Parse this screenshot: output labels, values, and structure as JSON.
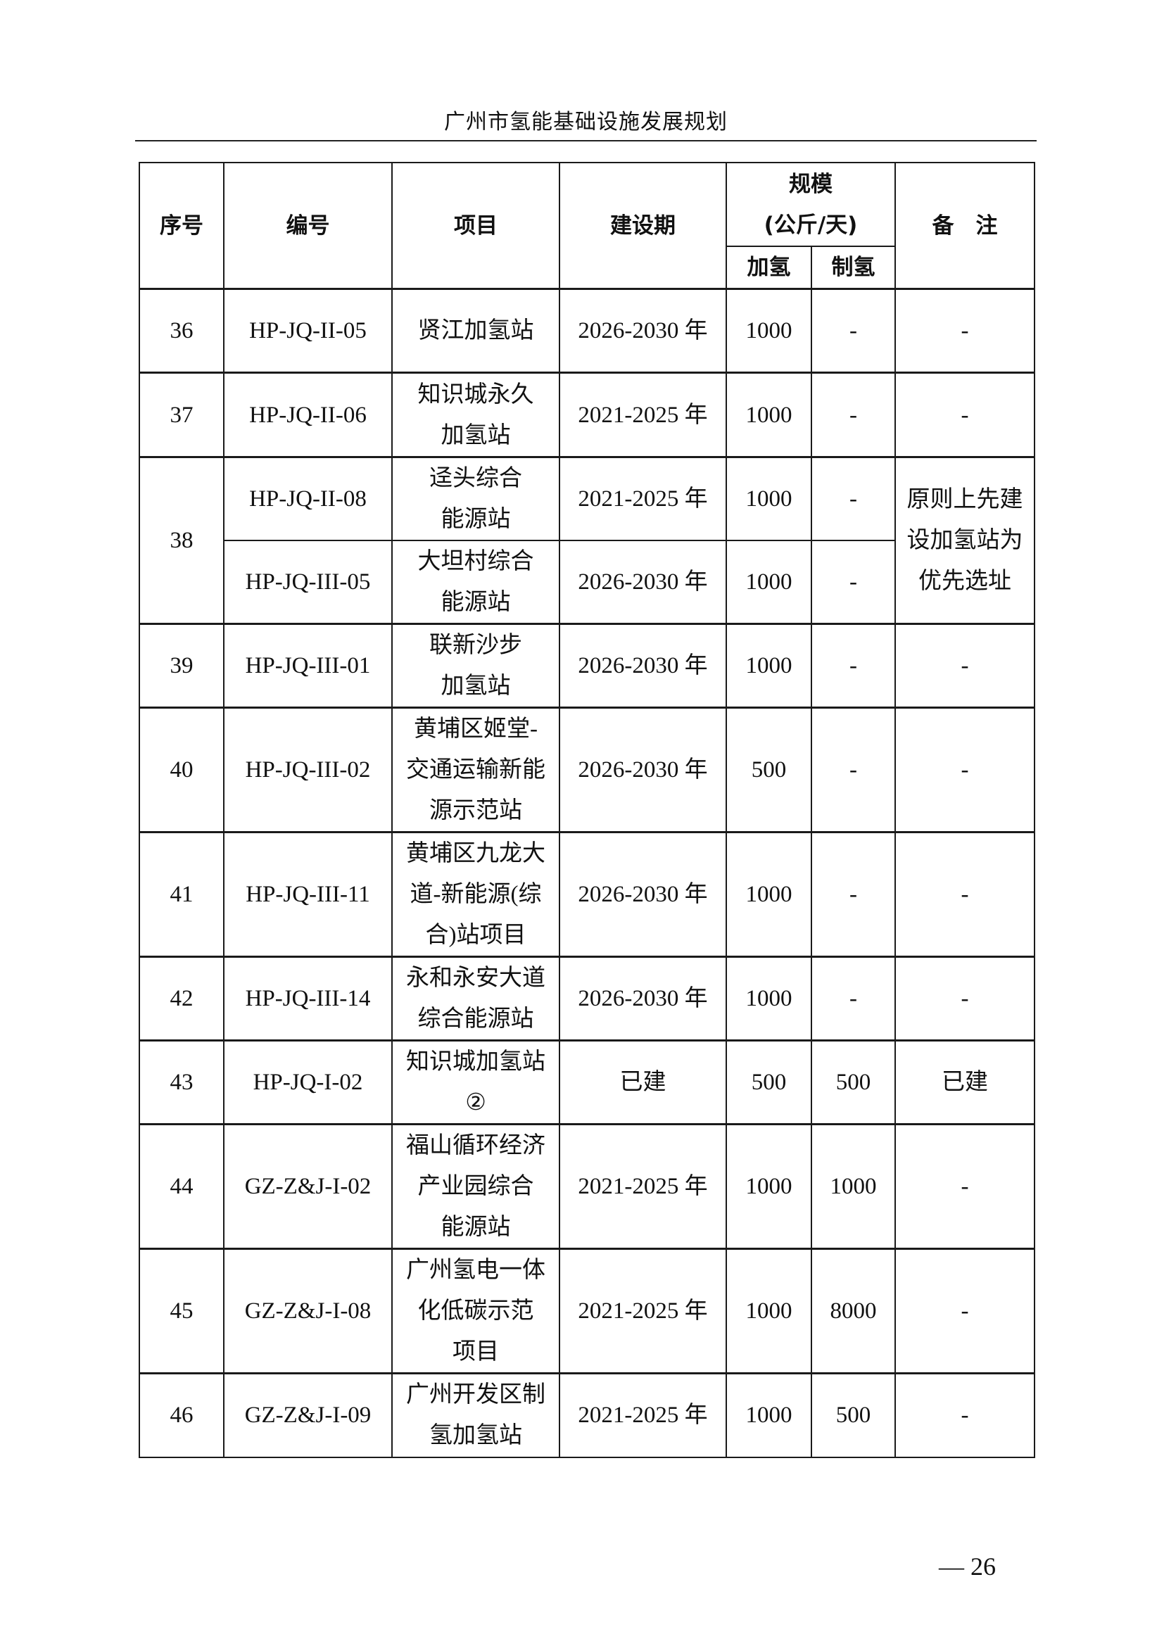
{
  "document": {
    "running_header": "广州市氢能基础设施发展规划",
    "page_number": "— 26"
  },
  "table": {
    "headers": {
      "seq": "序号",
      "code": "编号",
      "project": "项目",
      "period": "建设期",
      "scale": [
        "规模",
        "(公斤/天)"
      ],
      "refuel": "加氢",
      "produce": "制氢",
      "remark": "备　注"
    },
    "groups": [
      {
        "seq": "36",
        "remark": "-",
        "rows": [
          {
            "code": "HP-JQ-II-05",
            "project": [
              "贤江加氢站"
            ],
            "period": "2026-2030 年",
            "refuel": "1000",
            "produce": "-"
          }
        ],
        "heights": [
          119
        ]
      },
      {
        "seq": "37",
        "remark": "-",
        "rows": [
          {
            "code": "HP-JQ-II-06",
            "project": [
              "知识城永久",
              "加氢站"
            ],
            "period": "2021-2025 年",
            "refuel": "1000",
            "produce": "-"
          }
        ]
      },
      {
        "seq": "38",
        "remark": [
          "原则上先建",
          "设加氢站为",
          "优先选址"
        ],
        "rows": [
          {
            "code": "HP-JQ-II-08",
            "project": [
              "迳头综合",
              "能源站"
            ],
            "period": "2021-2025 年",
            "refuel": "1000",
            "produce": "-"
          },
          {
            "code": "HP-JQ-III-05",
            "project": [
              "大坦村综合",
              "能源站"
            ],
            "period": "2026-2030 年",
            "refuel": "1000",
            "produce": "-"
          }
        ]
      },
      {
        "seq": "39",
        "remark": "-",
        "rows": [
          {
            "code": "HP-JQ-III-01",
            "project": [
              "联新沙步",
              "加氢站"
            ],
            "period": "2026-2030 年",
            "refuel": "1000",
            "produce": "-"
          }
        ]
      },
      {
        "seq": "40",
        "remark": "-",
        "rows": [
          {
            "code": "HP-JQ-III-02",
            "project": [
              "黄埔区姬堂-",
              "交通运输新能",
              "源示范站"
            ],
            "period": "2026-2030 年",
            "refuel": "500",
            "produce": "-"
          }
        ]
      },
      {
        "seq": "41",
        "remark": "-",
        "rows": [
          {
            "code": "HP-JQ-III-11",
            "project": [
              "黄埔区九龙大",
              "道-新能源(综",
              "合)站项目"
            ],
            "period": "2026-2030 年",
            "refuel": "1000",
            "produce": "-"
          }
        ]
      },
      {
        "seq": "42",
        "remark": "-",
        "rows": [
          {
            "code": "HP-JQ-III-14",
            "project": [
              "永和永安大道",
              "综合能源站"
            ],
            "period": "2026-2030 年",
            "refuel": "1000",
            "produce": "-"
          }
        ]
      },
      {
        "seq": "43",
        "remark": "已建",
        "rows": [
          {
            "code": "HP-JQ-I-02",
            "project": [
              "知识城加氢站",
              "②"
            ],
            "period": "已建",
            "refuel": "500",
            "produce": "500"
          }
        ]
      },
      {
        "seq": "44",
        "remark": "-",
        "rows": [
          {
            "code": "GZ-Z&J-I-02",
            "project": [
              "福山循环经济",
              "产业园综合",
              "能源站"
            ],
            "period": "2021-2025 年",
            "refuel": "1000",
            "produce": "1000"
          }
        ]
      },
      {
        "seq": "45",
        "remark": "-",
        "rows": [
          {
            "code": "GZ-Z&J-I-08",
            "project": [
              "广州氢电一体",
              "化低碳示范",
              "项目"
            ],
            "period": "2021-2025 年",
            "refuel": "1000",
            "produce": "8000"
          }
        ]
      },
      {
        "seq": "46",
        "remark": "-",
        "rows": [
          {
            "code": "GZ-Z&J-I-09",
            "project": [
              "广州开发区制",
              "氢加氢站"
            ],
            "period": "2021-2025 年",
            "refuel": "1000",
            "produce": "500"
          }
        ]
      }
    ]
  }
}
